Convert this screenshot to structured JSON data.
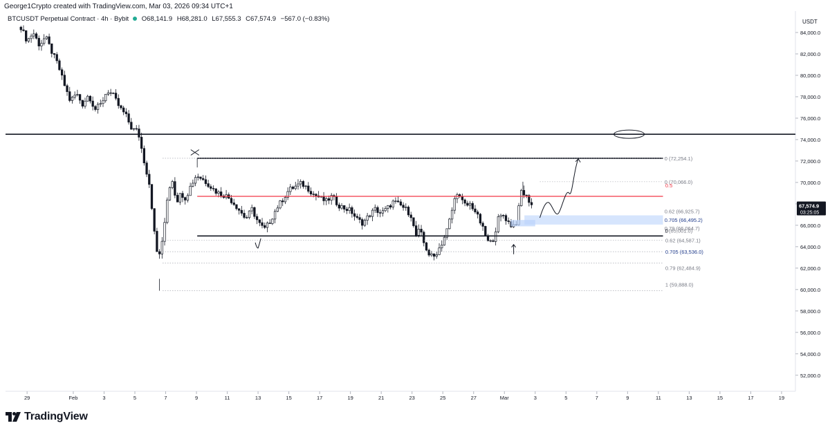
{
  "attribution": "George1Crypto created with TradingView.com, Mar 03, 2026 09:34 UTC+1",
  "symbol_bar": {
    "title": "BTCUSDT Perpetual Contract · 4h · Bybit",
    "open": "O68,141.9",
    "high": "H68,281.0",
    "low": "L67,555.3",
    "close": "C67,574.9",
    "change": "−567.0 (−0.83%)",
    "status_color": "#22ab94"
  },
  "price_axis": {
    "currency": "USDT",
    "last_price": "67,574.9",
    "countdown": "03:25:05",
    "last_price_color": "#131722"
  },
  "brand": {
    "name": "TradingView"
  },
  "colors": {
    "up": "#131722",
    "down": "#131722",
    "mid_line": "#f23645",
    "fib_blue": "#2962ff",
    "zone": "#bbd3fb"
  },
  "chart_data": {
    "type": "candlestick",
    "timeframe": "4h",
    "ylim": [
      50500,
      86000
    ],
    "y_ticks": [
      52000,
      54000,
      56000,
      58000,
      60000,
      62000,
      64000,
      66000,
      68000,
      70000,
      72000,
      74000,
      76000,
      78000,
      80000,
      82000,
      84000
    ],
    "y_tick_labels": [
      "52,000.0",
      "54,000.0",
      "56,000.0",
      "58,000.0",
      "60,000.0",
      "62,000.0",
      "64,000.0",
      "66,000.0",
      "68,000.0",
      "70,000.0",
      "72,000.0",
      "74,000.0",
      "76,000.0",
      "78,000.0",
      "80,000.0",
      "82,000.0",
      "84,000.0"
    ],
    "x_ticks": [
      {
        "label": "29",
        "day": -3
      },
      {
        "label": "Feb",
        "day": 0
      },
      {
        "label": "3",
        "day": 2
      },
      {
        "label": "5",
        "day": 4
      },
      {
        "label": "7",
        "day": 6
      },
      {
        "label": "9",
        "day": 8
      },
      {
        "label": "11",
        "day": 10
      },
      {
        "label": "13",
        "day": 12
      },
      {
        "label": "15",
        "day": 14
      },
      {
        "label": "17",
        "day": 16
      },
      {
        "label": "19",
        "day": 18
      },
      {
        "label": "21",
        "day": 20
      },
      {
        "label": "23",
        "day": 22
      },
      {
        "label": "25",
        "day": 24
      },
      {
        "label": "27",
        "day": 26
      },
      {
        "label": "Mar",
        "day": 28
      },
      {
        "label": "3",
        "day": 30
      },
      {
        "label": "5",
        "day": 32
      },
      {
        "label": "7",
        "day": 34
      },
      {
        "label": "9",
        "day": 36
      },
      {
        "label": "11",
        "day": 38
      },
      {
        "label": "13",
        "day": 40
      },
      {
        "label": "15",
        "day": 42
      },
      {
        "label": "17",
        "day": 44
      },
      {
        "label": "19",
        "day": 46
      }
    ],
    "x_domain_days": [
      -4.4,
      46.9
    ],
    "close_path": [
      [
        -3.4,
        84500
      ],
      [
        -3.0,
        83200
      ],
      [
        -2.6,
        84000
      ],
      [
        -2.2,
        82800
      ],
      [
        -1.8,
        83600
      ],
      [
        -1.4,
        82200
      ],
      [
        -1.0,
        81000
      ],
      [
        -0.6,
        79200
      ],
      [
        -0.2,
        77600
      ],
      [
        0.2,
        78300
      ],
      [
        0.6,
        77300
      ],
      [
        1.0,
        78200
      ],
      [
        1.4,
        76800
      ],
      [
        1.8,
        77300
      ],
      [
        2.2,
        78600
      ],
      [
        2.6,
        78100
      ],
      [
        3.0,
        77000
      ],
      [
        3.4,
        76300
      ],
      [
        3.8,
        75000
      ],
      [
        4.2,
        74800
      ],
      [
        4.6,
        72000
      ],
      [
        5.0,
        69500
      ],
      [
        5.2,
        66000
      ],
      [
        5.5,
        62800
      ],
      [
        5.8,
        64500
      ],
      [
        6.1,
        68500
      ],
      [
        6.4,
        70500
      ],
      [
        6.7,
        68200
      ],
      [
        7.0,
        69000
      ],
      [
        7.3,
        68500
      ],
      [
        7.6,
        69600
      ],
      [
        8.0,
        70700
      ],
      [
        8.4,
        70300
      ],
      [
        8.8,
        69800
      ],
      [
        9.2,
        69200
      ],
      [
        9.6,
        68900
      ],
      [
        10.0,
        68700
      ],
      [
        10.4,
        68100
      ],
      [
        10.8,
        67400
      ],
      [
        11.2,
        66600
      ],
      [
        11.6,
        67500
      ],
      [
        12.0,
        66300
      ],
      [
        12.4,
        65600
      ],
      [
        12.8,
        66400
      ],
      [
        13.2,
        67600
      ],
      [
        13.6,
        68400
      ],
      [
        14.0,
        69300
      ],
      [
        14.4,
        69600
      ],
      [
        14.8,
        69900
      ],
      [
        15.2,
        69500
      ],
      [
        15.6,
        68900
      ],
      [
        16.0,
        68600
      ],
      [
        16.4,
        68200
      ],
      [
        16.8,
        68700
      ],
      [
        17.2,
        67900
      ],
      [
        17.6,
        67600
      ],
      [
        18.0,
        67400
      ],
      [
        18.4,
        66600
      ],
      [
        18.8,
        66200
      ],
      [
        19.2,
        66900
      ],
      [
        19.6,
        67500
      ],
      [
        20.0,
        67100
      ],
      [
        20.4,
        67600
      ],
      [
        20.8,
        68200
      ],
      [
        21.2,
        67900
      ],
      [
        21.6,
        67500
      ],
      [
        22.0,
        66800
      ],
      [
        22.2,
        64900
      ],
      [
        22.5,
        65600
      ],
      [
        22.8,
        64200
      ],
      [
        23.1,
        63300
      ],
      [
        23.4,
        63000
      ],
      [
        23.7,
        63700
      ],
      [
        24.0,
        64500
      ],
      [
        24.3,
        65700
      ],
      [
        24.6,
        67400
      ],
      [
        24.9,
        69200
      ],
      [
        25.2,
        68300
      ],
      [
        25.5,
        67800
      ],
      [
        25.8,
        68000
      ],
      [
        26.1,
        67300
      ],
      [
        26.4,
        66400
      ],
      [
        26.7,
        65300
      ],
      [
        27.0,
        64200
      ],
      [
        27.3,
        64800
      ],
      [
        27.6,
        66600
      ],
      [
        27.9,
        67000
      ],
      [
        28.2,
        66400
      ],
      [
        28.5,
        65900
      ],
      [
        28.8,
        66300
      ],
      [
        29.1,
        69200
      ],
      [
        29.4,
        68700
      ],
      [
        29.7,
        68100
      ],
      [
        29.9,
        67575
      ]
    ],
    "levels": {
      "resistance_line": 74500,
      "range_top": 72254.1,
      "range_mid": 68700,
      "range_bottom": 65001
    },
    "fib_labels": [
      {
        "text": "0 (72,254.1)",
        "price": 72254.1,
        "color": "gray"
      },
      {
        "text": "0 (70,066.0)",
        "price": 70066,
        "color": "gray"
      },
      {
        "text": "0.5",
        "price": 69150,
        "color": "red"
      },
      {
        "text": "0.62 (66,925.7)",
        "price": 66925.7,
        "color": "gray"
      },
      {
        "text": "0.705 (66,495.2)",
        "price": 66495.2,
        "color": "blue"
      },
      {
        "text": "0.79 (66,064.7)",
        "price": 66064.7,
        "color": "gray"
      },
      {
        "text": "1 (65,001.0)",
        "price": 65001,
        "color": "gray"
      },
      {
        "text": "0",
        "price": 65001,
        "color": "black"
      },
      {
        "text": "0.62 (64,587.1)",
        "price": 64587.1,
        "color": "gray"
      },
      {
        "text": "0.705 (63,536.0)",
        "price": 63536,
        "color": "blue"
      },
      {
        "text": "0.79 (62,484.9)",
        "price": 62484.9,
        "color": "gray"
      },
      {
        "text": "1 (59,888.0)",
        "price": 59888,
        "color": "gray"
      }
    ],
    "annotations": [
      "cross-mark",
      "check-mark",
      "arrow-up",
      "projection-path",
      "ellipse"
    ]
  }
}
